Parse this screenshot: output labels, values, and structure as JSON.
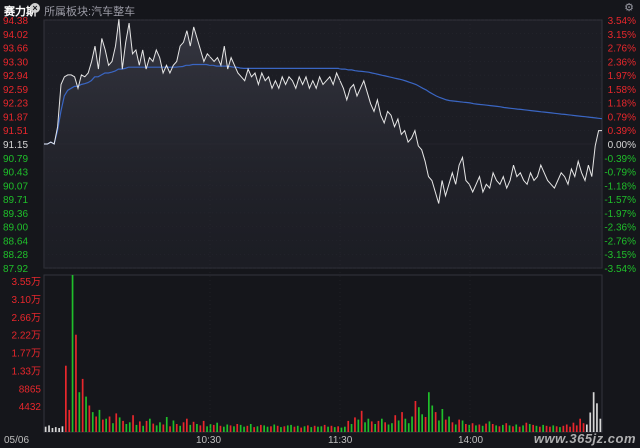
{
  "header": {
    "stock_name": "赛力斯",
    "sector_label": "所属板块:汽车整车",
    "close_icon": "close-icon",
    "settings_icon": "gear-icon"
  },
  "colors": {
    "background": "#15161b",
    "price_line": "#e6e6e6",
    "avg_line": "#3a66c4",
    "up": "#e8272c",
    "down": "#1fbf2a",
    "neutral": "#d6d6d6",
    "grid": "#2a2b33"
  },
  "chart_data": [
    {
      "type": "line",
      "title": "",
      "prev_close": 91.15,
      "ylim": [
        87.92,
        94.38
      ],
      "y_ticks_left": [
        "94.38",
        "94.02",
        "93.66",
        "93.30",
        "92.94",
        "92.59",
        "92.23",
        "91.87",
        "91.51",
        "91.15",
        "90.79",
        "90.43",
        "90.07",
        "89.71",
        "89.36",
        "89.00",
        "88.64",
        "88.28",
        "87.92"
      ],
      "y_ticks_right": [
        "3.54%",
        "3.15%",
        "2.76%",
        "2.36%",
        "1.97%",
        "1.58%",
        "1.18%",
        "0.79%",
        "0.39%",
        "0.00%",
        "-0.39%",
        "-0.79%",
        "-1.18%",
        "-1.57%",
        "-1.97%",
        "-2.36%",
        "-2.76%",
        "-3.15%",
        "-3.54%"
      ],
      "x_labels": [
        "05/06",
        "10:30",
        "11:30",
        "14:00"
      ],
      "series": [
        {
          "values": [
            91.15,
            91.15,
            91.2,
            91.15,
            91.6,
            92.7,
            92.9,
            92.95,
            92.95,
            92.9,
            92.6,
            92.95,
            92.9,
            93.0,
            93.3,
            93.7,
            93.1,
            93.9,
            93.6,
            93.2,
            93.3,
            93.7,
            94.4,
            93.1,
            93.8,
            94.3,
            93.5,
            93.6,
            93.2,
            93.6,
            93.1,
            93.4,
            93.3,
            93.6,
            93.4,
            93.0,
            93.2,
            93.0,
            93.2,
            93.3,
            93.7,
            93.8,
            94.1,
            93.7,
            94.2,
            93.9,
            93.6,
            93.3,
            93.5,
            93.4,
            93.3,
            93.4,
            93.2,
            93.7,
            93.1,
            93.4,
            93.2,
            93.0,
            92.9,
            92.8,
            93.1,
            92.9,
            93.0,
            92.7,
            93.0,
            92.8,
            92.9,
            92.6,
            92.8,
            92.6,
            92.9,
            92.7,
            92.9,
            92.8,
            92.6,
            92.9,
            92.7,
            92.9,
            92.6,
            92.8,
            92.6,
            92.9,
            92.7,
            92.8,
            92.9,
            92.7,
            93.0,
            92.8,
            92.6,
            92.3,
            92.6,
            92.7,
            92.4,
            92.6,
            92.8,
            92.5,
            92.2,
            92.0,
            92.3,
            91.9,
            91.7,
            92.0,
            91.9,
            91.6,
            91.8,
            91.4,
            91.5,
            91.2,
            91.3,
            91.5,
            91.1,
            91.0,
            90.7,
            90.3,
            90.2,
            89.9,
            89.6,
            90.2,
            89.8,
            90.1,
            90.4,
            90.1,
            90.6,
            90.8,
            90.2,
            90.1,
            89.9,
            90.1,
            90.3,
            89.9,
            90.1,
            90.0,
            90.4,
            90.2,
            90.1,
            90.3,
            90.0,
            90.2,
            90.6,
            90.3,
            90.4,
            90.2,
            90.1,
            90.4,
            90.2,
            90.3,
            90.6,
            90.4,
            90.2,
            90.1,
            90.0,
            90.2,
            90.4,
            90.3,
            90.1,
            90.5,
            90.3,
            90.7,
            90.4,
            90.2,
            90.6,
            90.3,
            91.1,
            91.5,
            91.5
          ]
        },
        {
          "values": [
            91.15,
            91.15,
            91.2,
            91.15,
            91.5,
            92.0,
            92.4,
            92.55,
            92.6,
            92.65,
            92.65,
            92.7,
            92.72,
            92.75,
            92.8,
            92.9,
            92.9,
            92.95,
            93.0,
            93.0,
            93.02,
            93.05,
            93.1,
            93.1,
            93.12,
            93.15,
            93.15,
            93.15,
            93.15,
            93.15,
            93.15,
            93.15,
            93.15,
            93.15,
            93.15,
            93.15,
            93.15,
            93.15,
            93.15,
            93.15,
            93.16,
            93.17,
            93.2,
            93.2,
            93.22,
            93.22,
            93.22,
            93.22,
            93.22,
            93.2,
            93.2,
            93.18,
            93.18,
            93.18,
            93.18,
            93.17,
            93.15,
            93.15,
            93.13,
            93.12,
            93.12,
            93.12,
            93.12,
            93.12,
            93.12,
            93.12,
            93.12,
            93.12,
            93.12,
            93.12,
            93.12,
            93.12,
            93.12,
            93.12,
            93.12,
            93.12,
            93.12,
            93.12,
            93.12,
            93.12,
            93.12,
            93.12,
            93.12,
            93.12,
            93.12,
            93.12,
            93.12,
            93.12,
            93.1,
            93.1,
            93.08,
            93.08,
            93.06,
            93.05,
            93.04,
            93.03,
            93.02,
            93.0,
            92.98,
            92.96,
            92.94,
            92.92,
            92.9,
            92.88,
            92.86,
            92.84,
            92.82,
            92.79,
            92.76,
            92.73,
            92.7,
            92.65,
            92.6,
            92.56,
            92.5,
            92.45,
            92.4,
            92.36,
            92.33,
            92.3,
            92.28,
            92.27,
            92.26,
            92.25,
            92.24,
            92.23,
            92.22,
            92.2,
            92.19,
            92.18,
            92.17,
            92.16,
            92.15,
            92.14,
            92.13,
            92.12,
            92.1,
            92.09,
            92.08,
            92.07,
            92.06,
            92.05,
            92.04,
            92.03,
            92.02,
            92.01,
            92.0,
            91.99,
            91.98,
            91.97,
            91.96,
            91.95,
            91.94,
            91.93,
            91.92,
            91.91,
            91.9,
            91.89,
            91.88,
            91.87,
            91.86,
            91.85,
            91.84,
            91.83,
            91.82,
            91.81
          ]
        }
      ]
    },
    {
      "type": "bar",
      "title": "",
      "y_ticks": [
        "3.55万",
        "3.10万",
        "2.66万",
        "2.22万",
        "1.77万",
        "1.33万",
        "8865",
        "4432"
      ],
      "ylim": [
        0,
        35500
      ],
      "values": [
        1200,
        1500,
        900,
        1100,
        900,
        1300,
        15000,
        5000,
        35500,
        22000,
        9000,
        12000,
        8000,
        6000,
        4500,
        3500,
        5000,
        2800,
        3000,
        3500,
        2000,
        4200,
        3300,
        2500,
        1800,
        2200,
        3800,
        1600,
        2400,
        1400,
        2500,
        3000,
        1900,
        1500,
        2200,
        1700,
        3400,
        1300,
        2600,
        1800,
        1400,
        2200,
        3000,
        1600,
        2300,
        1800,
        1500,
        2500,
        1300,
        1800,
        1600,
        2100,
        1400,
        1200,
        1700,
        1500,
        1300,
        1800,
        1600,
        1200,
        1400,
        1800,
        1100,
        1300,
        1600,
        1500,
        1200,
        1300,
        1700,
        1400,
        1100,
        1300,
        1500,
        1600,
        1200,
        1400,
        1000,
        1300,
        1500,
        1100,
        1400,
        1200,
        1300,
        1600,
        1200,
        1400,
        1100,
        1300,
        1000,
        1200,
        2500,
        1800,
        3300,
        2800,
        4800,
        2200,
        3000,
        2400,
        1800,
        2500,
        3000,
        2200,
        1700,
        2000,
        3800,
        2600,
        4500,
        3000,
        2000,
        3500,
        7000,
        5600,
        4000,
        3400,
        9000,
        6000,
        4500,
        2600,
        5200,
        2800,
        3500,
        2200,
        1700,
        2800,
        2600,
        1800,
        1600,
        2000,
        1500,
        1700,
        1400,
        1900,
        2400,
        1800,
        1500,
        1300,
        1600,
        2000,
        1500,
        1300,
        1700,
        1200,
        1500,
        2100,
        1800,
        1600,
        1400,
        1200,
        1600,
        1400,
        1200,
        1500,
        1300,
        1100,
        1400,
        1700,
        1200,
        2100,
        1500,
        3000,
        2000,
        1700,
        4400,
        9000,
        6500,
        3000
      ],
      "dirs": [
        "n",
        "n",
        "n",
        "n",
        "n",
        "n",
        "u",
        "u",
        "d",
        "u",
        "d",
        "u",
        "d",
        "u",
        "d",
        "u",
        "d",
        "u",
        "d",
        "u",
        "d",
        "u",
        "d",
        "u",
        "d",
        "d",
        "u",
        "d",
        "u",
        "d",
        "u",
        "d",
        "u",
        "d",
        "d",
        "u",
        "d",
        "u",
        "d",
        "u",
        "d",
        "u",
        "u",
        "d",
        "u",
        "d",
        "u",
        "u",
        "d",
        "d",
        "u",
        "d",
        "u",
        "d",
        "d",
        "u",
        "d",
        "u",
        "d",
        "d",
        "u",
        "d",
        "u",
        "d",
        "u",
        "d",
        "d",
        "u",
        "d",
        "u",
        "d",
        "u",
        "d",
        "d",
        "u",
        "d",
        "u",
        "d",
        "u",
        "d",
        "u",
        "d",
        "d",
        "u",
        "d",
        "u",
        "d",
        "u",
        "d",
        "d",
        "u",
        "d",
        "u",
        "d",
        "u",
        "d",
        "d",
        "u",
        "d",
        "u",
        "d",
        "u",
        "d",
        "d",
        "u",
        "d",
        "u",
        "d",
        "d",
        "d",
        "u",
        "d",
        "d",
        "u",
        "d",
        "d",
        "u",
        "d",
        "d",
        "u",
        "d",
        "u",
        "d",
        "u",
        "d",
        "u",
        "d",
        "u",
        "d",
        "u",
        "d",
        "u",
        "d",
        "u",
        "d",
        "u",
        "d",
        "u",
        "d",
        "u",
        "d",
        "u",
        "d",
        "u",
        "d",
        "u",
        "d",
        "u",
        "d",
        "u",
        "u",
        "d",
        "u",
        "d",
        "u",
        "u",
        "u",
        "u",
        "u",
        "u",
        "u"
      ]
    }
  ],
  "watermark": "www.365jz.com"
}
